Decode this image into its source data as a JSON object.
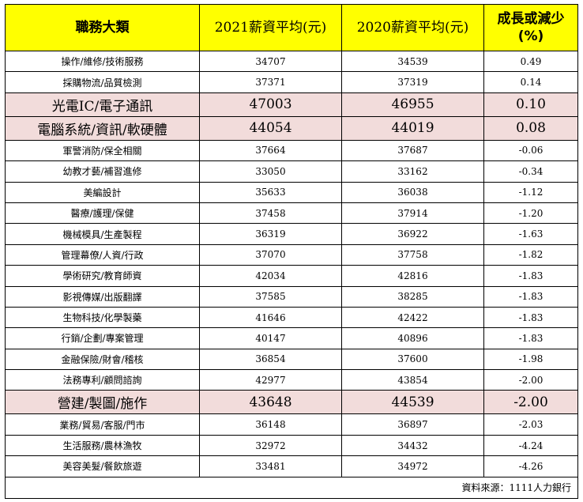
{
  "table": {
    "headers": [
      "職務大類",
      "2021薪資平均(元)",
      "2020薪資平均(元)",
      "成長或減少\n(%)"
    ],
    "rows": [
      {
        "category": "操作/維修/技術服務",
        "y2021": "34707",
        "y2020": "34539",
        "change": "0.49",
        "highlight": false
      },
      {
        "category": "採購物流/品質檢測",
        "y2021": "37371",
        "y2020": "37319",
        "change": "0.14",
        "highlight": false
      },
      {
        "category": "光電IC/電子通訊",
        "y2021": "47003",
        "y2020": "46955",
        "change": "0.10",
        "highlight": true
      },
      {
        "category": "電腦系統/資訊/軟硬體",
        "y2021": "44054",
        "y2020": "44019",
        "change": "0.08",
        "highlight": true
      },
      {
        "category": "軍警消防/保全相關",
        "y2021": "37664",
        "y2020": "37687",
        "change": "-0.06",
        "highlight": false
      },
      {
        "category": "幼教才藝/補習進修",
        "y2021": "33050",
        "y2020": "33162",
        "change": "-0.34",
        "highlight": false
      },
      {
        "category": "美編設計",
        "y2021": "35633",
        "y2020": "36038",
        "change": "-1.12",
        "highlight": false
      },
      {
        "category": "醫療/護理/保健",
        "y2021": "37458",
        "y2020": "37914",
        "change": "-1.20",
        "highlight": false
      },
      {
        "category": "機械模具/生產製程",
        "y2021": "36319",
        "y2020": "36922",
        "change": "-1.63",
        "highlight": false
      },
      {
        "category": "管理幕僚/人資/行政",
        "y2021": "37070",
        "y2020": "37758",
        "change": "-1.82",
        "highlight": false
      },
      {
        "category": "學術研究/教育師資",
        "y2021": "42034",
        "y2020": "42816",
        "change": "-1.83",
        "highlight": false
      },
      {
        "category": "影視傳媒/出版翻譯",
        "y2021": "37585",
        "y2020": "38285",
        "change": "-1.83",
        "highlight": false
      },
      {
        "category": "生物科技/化學製藥",
        "y2021": "41646",
        "y2020": "42422",
        "change": "-1.83",
        "highlight": false
      },
      {
        "category": "行銷/企劃/專案管理",
        "y2021": "40147",
        "y2020": "40896",
        "change": "-1.83",
        "highlight": false
      },
      {
        "category": "金融保險/財會/稽核",
        "y2021": "36854",
        "y2020": "37600",
        "change": "-1.98",
        "highlight": false
      },
      {
        "category": "法務專利/顧問諮詢",
        "y2021": "42977",
        "y2020": "43854",
        "change": "-2.00",
        "highlight": false
      },
      {
        "category": "營建/製圖/施作",
        "y2021": "43648",
        "y2020": "44539",
        "change": "-2.00",
        "highlight": true
      },
      {
        "category": "業務/貿易/客服/門市",
        "y2021": "36148",
        "y2020": "36897",
        "change": "-2.03",
        "highlight": false
      },
      {
        "category": "生活服務/農林漁牧",
        "y2021": "32972",
        "y2020": "34432",
        "change": "-4.24",
        "highlight": false
      },
      {
        "category": "美容美髮/餐飲旅遊",
        "y2021": "33481",
        "y2020": "34972",
        "change": "-4.26",
        "highlight": false
      }
    ],
    "source": "資料來源：1111人力銀行"
  },
  "colors": {
    "header_bg": "#ffff00",
    "highlight_bg": "#f2dcdb"
  }
}
